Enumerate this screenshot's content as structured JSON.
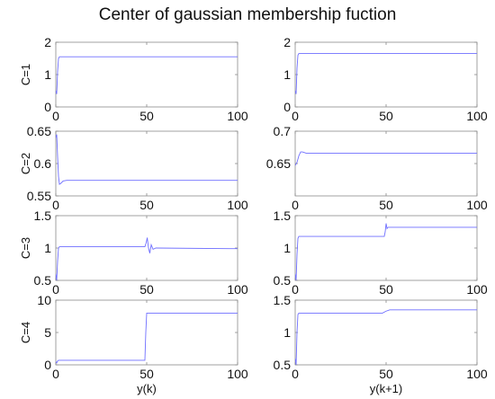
{
  "figure": {
    "title": "Center of gaussian membership fuction"
  },
  "chart_data": [
    {
      "type": "line",
      "row": 0,
      "col": 0,
      "ylabel": "C=1",
      "xlabel": "",
      "xlim": [
        0,
        100
      ],
      "ylim": [
        0,
        2
      ],
      "xticks": [
        0,
        50,
        100
      ],
      "yticks": [
        0,
        1,
        2
      ],
      "series": [
        {
          "color": "#6f6fff",
          "x": [
            0,
            0.5,
            1,
            1.5,
            2,
            100
          ],
          "y": [
            0.5,
            0.4,
            1.1,
            1.5,
            1.55,
            1.55
          ]
        }
      ]
    },
    {
      "type": "line",
      "row": 0,
      "col": 1,
      "ylabel": "",
      "xlabel": "",
      "xlim": [
        0,
        100
      ],
      "ylim": [
        0,
        2
      ],
      "xticks": [
        0,
        50,
        100
      ],
      "yticks": [
        0,
        1,
        2
      ],
      "series": [
        {
          "color": "#6f6fff",
          "x": [
            0,
            0.5,
            1,
            1.5,
            2,
            100
          ],
          "y": [
            0.5,
            0.4,
            1.2,
            1.6,
            1.65,
            1.65
          ]
        }
      ]
    },
    {
      "type": "line",
      "row": 1,
      "col": 0,
      "ylabel": "C=2",
      "xlabel": "",
      "xlim": [
        0,
        100
      ],
      "ylim": [
        0.55,
        0.65
      ],
      "xticks": [
        0,
        50,
        100
      ],
      "yticks": [
        0.55,
        0.6,
        0.65
      ],
      "series": [
        {
          "color": "#6f6fff",
          "x": [
            0,
            0.5,
            1,
            1.5,
            2,
            3,
            4,
            6,
            100
          ],
          "y": [
            0.64,
            0.645,
            0.61,
            0.58,
            0.568,
            0.57,
            0.573,
            0.574,
            0.574
          ]
        }
      ]
    },
    {
      "type": "line",
      "row": 1,
      "col": 1,
      "ylabel": "",
      "xlabel": "",
      "xlim": [
        0,
        100
      ],
      "ylim": [
        0.6,
        0.7
      ],
      "xticks": [
        0,
        50,
        100
      ],
      "yticks": [
        0.65,
        0.7
      ],
      "series": [
        {
          "color": "#6f6fff",
          "x": [
            0,
            1,
            2,
            3,
            4,
            6,
            100
          ],
          "y": [
            0.647,
            0.652,
            0.662,
            0.668,
            0.668,
            0.666,
            0.666
          ]
        }
      ]
    },
    {
      "type": "line",
      "row": 2,
      "col": 0,
      "ylabel": "C=3",
      "xlabel": "",
      "xlim": [
        0,
        100
      ],
      "ylim": [
        0.5,
        1.5
      ],
      "xticks": [
        0,
        50,
        100
      ],
      "yticks": [
        0.5,
        1,
        1.5
      ],
      "series": [
        {
          "color": "#6f6fff",
          "x": [
            0,
            0.5,
            1,
            1.5,
            2,
            49,
            49.7,
            50.3,
            51,
            51.7,
            52.5,
            53.5,
            55,
            100
          ],
          "y": [
            0.6,
            0.5,
            0.8,
            1.0,
            1.02,
            1.02,
            1.08,
            1.16,
            1.0,
            0.92,
            1.05,
            0.98,
            1.0,
            0.99
          ]
        }
      ]
    },
    {
      "type": "line",
      "row": 2,
      "col": 1,
      "ylabel": "",
      "xlabel": "",
      "xlim": [
        0,
        100
      ],
      "ylim": [
        0.5,
        1.5
      ],
      "xticks": [
        0,
        50,
        100
      ],
      "yticks": [
        0.5,
        1,
        1.5
      ],
      "series": [
        {
          "color": "#6f6fff",
          "x": [
            0,
            0.5,
            1,
            1.5,
            2,
            49,
            49.5,
            50,
            50.5,
            51,
            100
          ],
          "y": [
            0.6,
            0.5,
            0.9,
            1.15,
            1.18,
            1.18,
            1.25,
            1.38,
            1.3,
            1.32,
            1.32
          ]
        }
      ]
    },
    {
      "type": "line",
      "row": 3,
      "col": 0,
      "ylabel": "C=4",
      "xlabel": "y(k)",
      "xlim": [
        0,
        100
      ],
      "ylim": [
        0,
        10
      ],
      "xticks": [
        0,
        50,
        100
      ],
      "yticks": [
        0,
        5,
        10
      ],
      "series": [
        {
          "color": "#6f6fff",
          "x": [
            0,
            0.5,
            1,
            1.5,
            49,
            49.5,
            50,
            100
          ],
          "y": [
            0.5,
            0.3,
            0.6,
            0.7,
            0.7,
            5.0,
            8.0,
            8.0
          ]
        }
      ]
    },
    {
      "type": "line",
      "row": 3,
      "col": 1,
      "ylabel": "",
      "xlabel": "y(k+1)",
      "xlim": [
        0,
        100
      ],
      "ylim": [
        0.5,
        1.5
      ],
      "xticks": [
        0,
        50,
        100
      ],
      "yticks": [
        0.5,
        1,
        1.5
      ],
      "series": [
        {
          "color": "#6f6fff",
          "x": [
            0,
            0.5,
            1,
            1.5,
            2,
            48,
            50,
            52,
            100
          ],
          "y": [
            0.6,
            0.5,
            1.0,
            1.28,
            1.3,
            1.3,
            1.33,
            1.35,
            1.35
          ]
        }
      ]
    }
  ]
}
